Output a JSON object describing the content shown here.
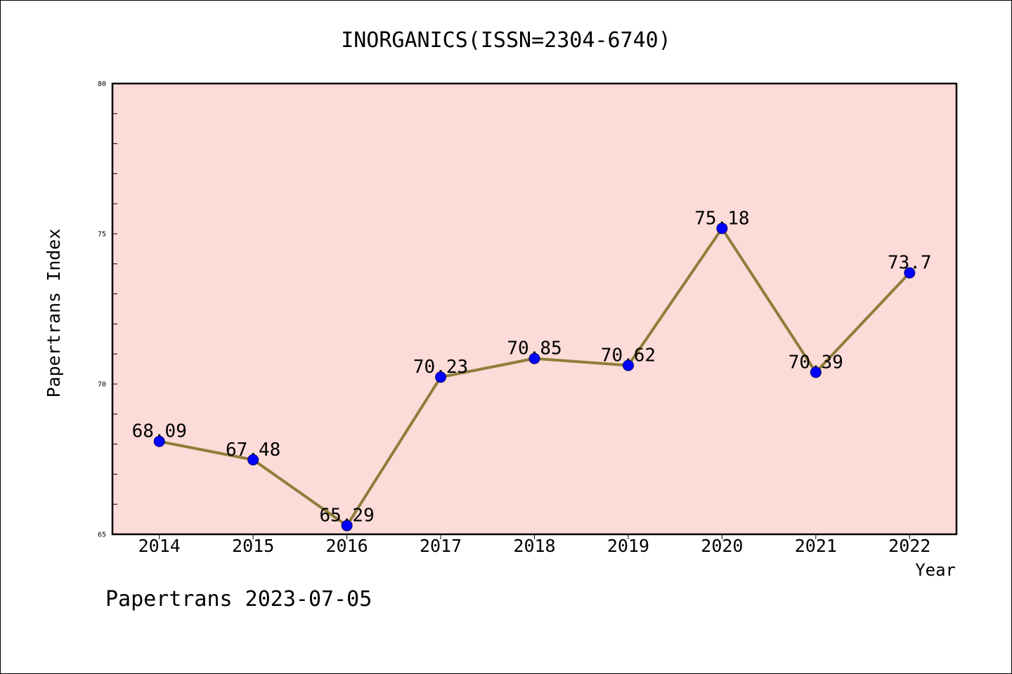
{
  "footer": "Papertrans 2023-07-05",
  "colors": {
    "page_background": "#ffffff",
    "plot_background": "#fddbd8",
    "line": "#8e7e3b",
    "marker": "#0000ff",
    "marker_edge": "#00006a",
    "axis": "#000000"
  },
  "chart_data": {
    "type": "line",
    "title": "INORGANICS(ISSN=2304-6740)",
    "xlabel": "Year",
    "ylabel": "Papertrans Index",
    "categories": [
      "2014",
      "2015",
      "2016",
      "2017",
      "2018",
      "2019",
      "2020",
      "2021",
      "2022"
    ],
    "series": [
      {
        "values": [
          68.09,
          67.48,
          65.29,
          70.23,
          70.85,
          70.62,
          75.18,
          70.39,
          73.7
        ]
      }
    ],
    "data_labels": true,
    "marker": "circle",
    "ylim": [
      65,
      80
    ],
    "yticks": [
      65,
      70,
      75,
      80
    ],
    "y_minor_step": 1,
    "grid": false,
    "legend": "none"
  }
}
